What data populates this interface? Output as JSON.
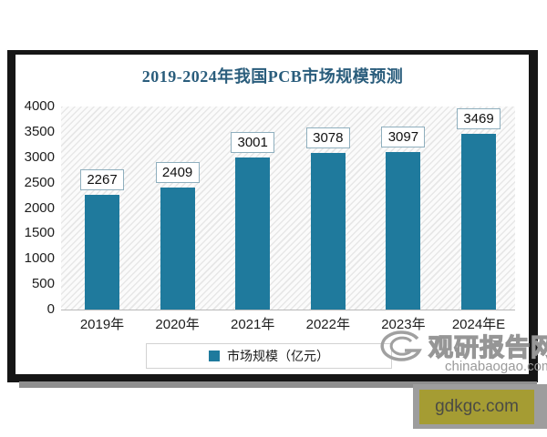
{
  "chart_data": {
    "type": "bar",
    "title": "2019-2024年我国PCB市场规模预测",
    "categories": [
      "2019年",
      "2020年",
      "2021年",
      "2022年",
      "2023年",
      "2024年E"
    ],
    "values": [
      2267,
      2409,
      3001,
      3078,
      3097,
      3469
    ],
    "series_name": "市场规模（亿元）",
    "ylim": [
      0,
      4000
    ],
    "yticks": [
      0,
      500,
      1000,
      1500,
      2000,
      2500,
      3000,
      3500,
      4000
    ],
    "grid": false,
    "data_labels": true,
    "legend_position": "bottom",
    "bar_color": "#1f7a9d",
    "label_box_border_color": "#8fafbe",
    "title_color": "#2a5d7c"
  },
  "legend": {
    "label": "市场规模（亿元）",
    "swatch_color": "#1f7a9d"
  },
  "watermark": {
    "logo": "spiral-g-icon",
    "site_name": "观研报告网",
    "site_url": "chinabaogao.com",
    "color": "#9a9a9a"
  },
  "footer_badge": {
    "label": "gdkgc.com",
    "background": "#a59c33"
  }
}
